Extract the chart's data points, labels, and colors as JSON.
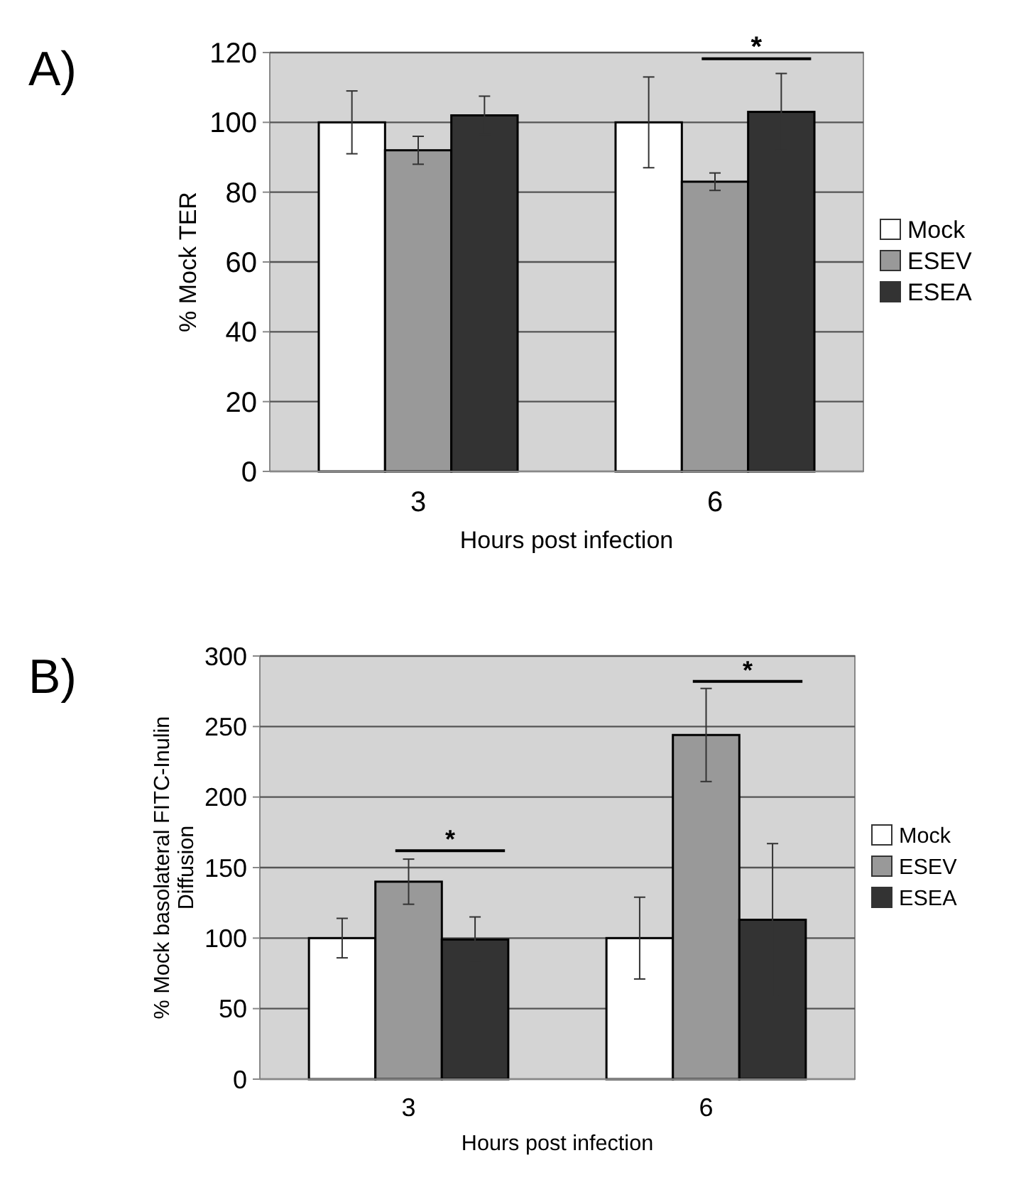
{
  "chart_data": [
    {
      "type": "bar",
      "title": "A)",
      "xlabel": "Hours post infection",
      "ylabel": "% Mock TER",
      "categories": [
        "3",
        "6"
      ],
      "series": [
        {
          "name": "Mock",
          "color": "#ffffff",
          "values": [
            100,
            100
          ],
          "errors": [
            9,
            13
          ]
        },
        {
          "name": "ESEV",
          "color": "#999999",
          "values": [
            92,
            83
          ],
          "errors": [
            4,
            2.5
          ]
        },
        {
          "name": "ESEA",
          "color": "#333333",
          "values": [
            102,
            103
          ],
          "errors": [
            5.5,
            11
          ]
        }
      ],
      "ylim": [
        0,
        120
      ],
      "yticks": [
        0,
        20,
        40,
        60,
        80,
        100,
        120
      ],
      "grid": "y",
      "legend": "right",
      "annotations": [
        "*"
      ]
    },
    {
      "type": "bar",
      "title": "B)",
      "xlabel": "Hours post infection",
      "ylabel": "% Mock basolateral FITC-Inulin Diffusion",
      "categories": [
        "3",
        "6"
      ],
      "series": [
        {
          "name": "Mock",
          "color": "#ffffff",
          "values": [
            100,
            100
          ],
          "errors": [
            14,
            29
          ]
        },
        {
          "name": "ESEV",
          "color": "#999999",
          "values": [
            140,
            244
          ],
          "errors": [
            16,
            33
          ]
        },
        {
          "name": "ESEA",
          "color": "#333333",
          "values": [
            99,
            113
          ],
          "errors": [
            16,
            54
          ]
        }
      ],
      "ylim": [
        0,
        300
      ],
      "yticks": [
        0,
        50,
        100,
        150,
        200,
        250,
        300
      ],
      "grid": "y",
      "legend": "right",
      "annotations": [
        "*",
        "*"
      ]
    }
  ]
}
